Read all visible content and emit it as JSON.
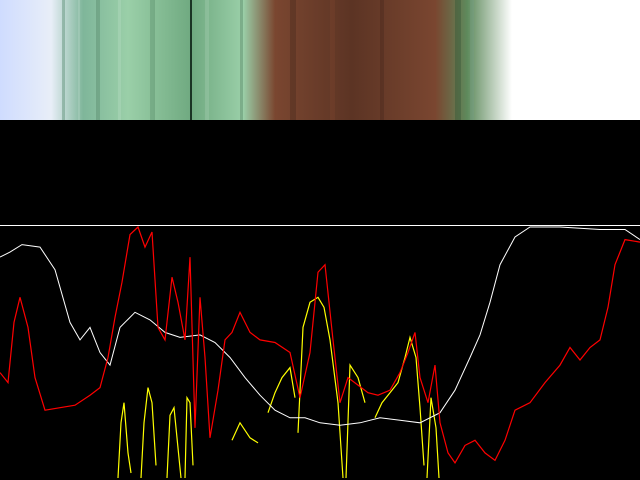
{
  "spectrum_strip": {
    "colors": {
      "blue_start": "#cfdcff",
      "pale_blue": "#e8eef8",
      "teal": "#7fb69a",
      "green_light": "#9acfa8",
      "green_mid": "#6fa980",
      "green_dark": "#3f6b4c",
      "brown": "#7a4630",
      "brown_dark": "#5c3424",
      "green_end": "#5e8a5c",
      "white_end": "#ffffff"
    }
  },
  "plot": {
    "background": "#000000",
    "border_color": "#ffffff",
    "series_colors": {
      "white": "#ffffff",
      "red": "#ff0000",
      "yellow": "#ffff00"
    },
    "white_trace": [
      [
        0,
        0.88
      ],
      [
        10,
        0.9
      ],
      [
        22,
        0.93
      ],
      [
        40,
        0.92
      ],
      [
        55,
        0.83
      ],
      [
        70,
        0.62
      ],
      [
        80,
        0.55
      ],
      [
        90,
        0.6
      ],
      [
        100,
        0.5
      ],
      [
        110,
        0.45
      ],
      [
        120,
        0.6
      ],
      [
        135,
        0.66
      ],
      [
        150,
        0.63
      ],
      [
        165,
        0.58
      ],
      [
        180,
        0.56
      ],
      [
        200,
        0.57
      ],
      [
        215,
        0.54
      ],
      [
        230,
        0.48
      ],
      [
        245,
        0.4
      ],
      [
        260,
        0.33
      ],
      [
        275,
        0.27
      ],
      [
        290,
        0.24
      ],
      [
        305,
        0.24
      ],
      [
        320,
        0.22
      ],
      [
        340,
        0.21
      ],
      [
        360,
        0.22
      ],
      [
        380,
        0.24
      ],
      [
        400,
        0.23
      ],
      [
        420,
        0.22
      ],
      [
        440,
        0.26
      ],
      [
        455,
        0.35
      ],
      [
        470,
        0.48
      ],
      [
        480,
        0.57
      ],
      [
        490,
        0.7
      ],
      [
        500,
        0.85
      ],
      [
        515,
        0.96
      ],
      [
        530,
        1.0
      ],
      [
        560,
        1.0
      ],
      [
        600,
        0.99
      ],
      [
        625,
        0.99
      ],
      [
        640,
        0.95
      ]
    ],
    "red_trace": [
      [
        0,
        0.42
      ],
      [
        8,
        0.38
      ],
      [
        14,
        0.62
      ],
      [
        20,
        0.72
      ],
      [
        28,
        0.6
      ],
      [
        35,
        0.4
      ],
      [
        45,
        0.27
      ],
      [
        60,
        0.28
      ],
      [
        75,
        0.29
      ],
      [
        90,
        0.33
      ],
      [
        100,
        0.36
      ],
      [
        108,
        0.48
      ],
      [
        115,
        0.64
      ],
      [
        122,
        0.78
      ],
      [
        130,
        0.97
      ],
      [
        138,
        1.0
      ],
      [
        145,
        0.92
      ],
      [
        152,
        0.98
      ],
      [
        158,
        0.6
      ],
      [
        165,
        0.55
      ],
      [
        172,
        0.8
      ],
      [
        178,
        0.7
      ],
      [
        185,
        0.55
      ],
      [
        190,
        0.88
      ],
      [
        195,
        0.2
      ],
      [
        200,
        0.72
      ],
      [
        205,
        0.48
      ],
      [
        210,
        0.16
      ],
      [
        218,
        0.35
      ],
      [
        225,
        0.55
      ],
      [
        232,
        0.58
      ],
      [
        240,
        0.66
      ],
      [
        250,
        0.58
      ],
      [
        260,
        0.55
      ],
      [
        275,
        0.54
      ],
      [
        290,
        0.5
      ],
      [
        300,
        0.32
      ],
      [
        310,
        0.5
      ],
      [
        318,
        0.82
      ],
      [
        325,
        0.85
      ],
      [
        333,
        0.55
      ],
      [
        340,
        0.3
      ],
      [
        348,
        0.4
      ],
      [
        358,
        0.37
      ],
      [
        368,
        0.34
      ],
      [
        378,
        0.33
      ],
      [
        390,
        0.35
      ],
      [
        400,
        0.42
      ],
      [
        408,
        0.5
      ],
      [
        415,
        0.58
      ],
      [
        420,
        0.4
      ],
      [
        428,
        0.3
      ],
      [
        435,
        0.45
      ],
      [
        440,
        0.22
      ],
      [
        448,
        0.1
      ],
      [
        455,
        0.06
      ],
      [
        465,
        0.13
      ],
      [
        475,
        0.15
      ],
      [
        485,
        0.1
      ],
      [
        495,
        0.07
      ],
      [
        505,
        0.15
      ],
      [
        515,
        0.27
      ],
      [
        530,
        0.3
      ],
      [
        545,
        0.38
      ],
      [
        560,
        0.45
      ],
      [
        570,
        0.52
      ],
      [
        580,
        0.47
      ],
      [
        590,
        0.52
      ],
      [
        600,
        0.55
      ],
      [
        608,
        0.68
      ],
      [
        615,
        0.85
      ],
      [
        625,
        0.95
      ],
      [
        640,
        0.94
      ]
    ],
    "yellow_segments": [
      [
        [
          118,
          0.0
        ],
        [
          121,
          0.22
        ],
        [
          124,
          0.3
        ],
        [
          128,
          0.1
        ],
        [
          131,
          0.02
        ]
      ],
      [
        [
          141,
          0.0
        ],
        [
          144,
          0.22
        ],
        [
          148,
          0.36
        ],
        [
          152,
          0.3
        ],
        [
          156,
          0.05
        ]
      ],
      [
        [
          167,
          0.0
        ],
        [
          170,
          0.25
        ],
        [
          174,
          0.28
        ],
        [
          178,
          0.12
        ],
        [
          181,
          0.0
        ]
      ],
      [
        [
          185,
          0.0
        ],
        [
          187,
          0.32
        ],
        [
          190,
          0.3
        ],
        [
          193,
          0.05
        ]
      ],
      [
        [
          232,
          0.15
        ],
        [
          240,
          0.22
        ],
        [
          250,
          0.16
        ],
        [
          258,
          0.14
        ]
      ],
      [
        [
          268,
          0.26
        ],
        [
          275,
          0.34
        ],
        [
          282,
          0.4
        ],
        [
          290,
          0.44
        ],
        [
          295,
          0.32
        ]
      ],
      [
        [
          298,
          0.18
        ],
        [
          303,
          0.6
        ],
        [
          310,
          0.7
        ],
        [
          318,
          0.72
        ],
        [
          324,
          0.68
        ],
        [
          330,
          0.55
        ],
        [
          338,
          0.3
        ],
        [
          343,
          0.0
        ]
      ],
      [
        [
          346,
          0.0
        ],
        [
          350,
          0.45
        ],
        [
          358,
          0.4
        ],
        [
          365,
          0.3
        ]
      ],
      [
        [
          375,
          0.24
        ],
        [
          382,
          0.3
        ],
        [
          390,
          0.34
        ],
        [
          398,
          0.38
        ],
        [
          405,
          0.48
        ],
        [
          410,
          0.56
        ],
        [
          416,
          0.48
        ],
        [
          420,
          0.28
        ],
        [
          424,
          0.05
        ]
      ],
      [
        [
          427,
          0.0
        ],
        [
          431,
          0.32
        ],
        [
          436,
          0.2
        ],
        [
          439,
          0.0
        ]
      ]
    ]
  }
}
